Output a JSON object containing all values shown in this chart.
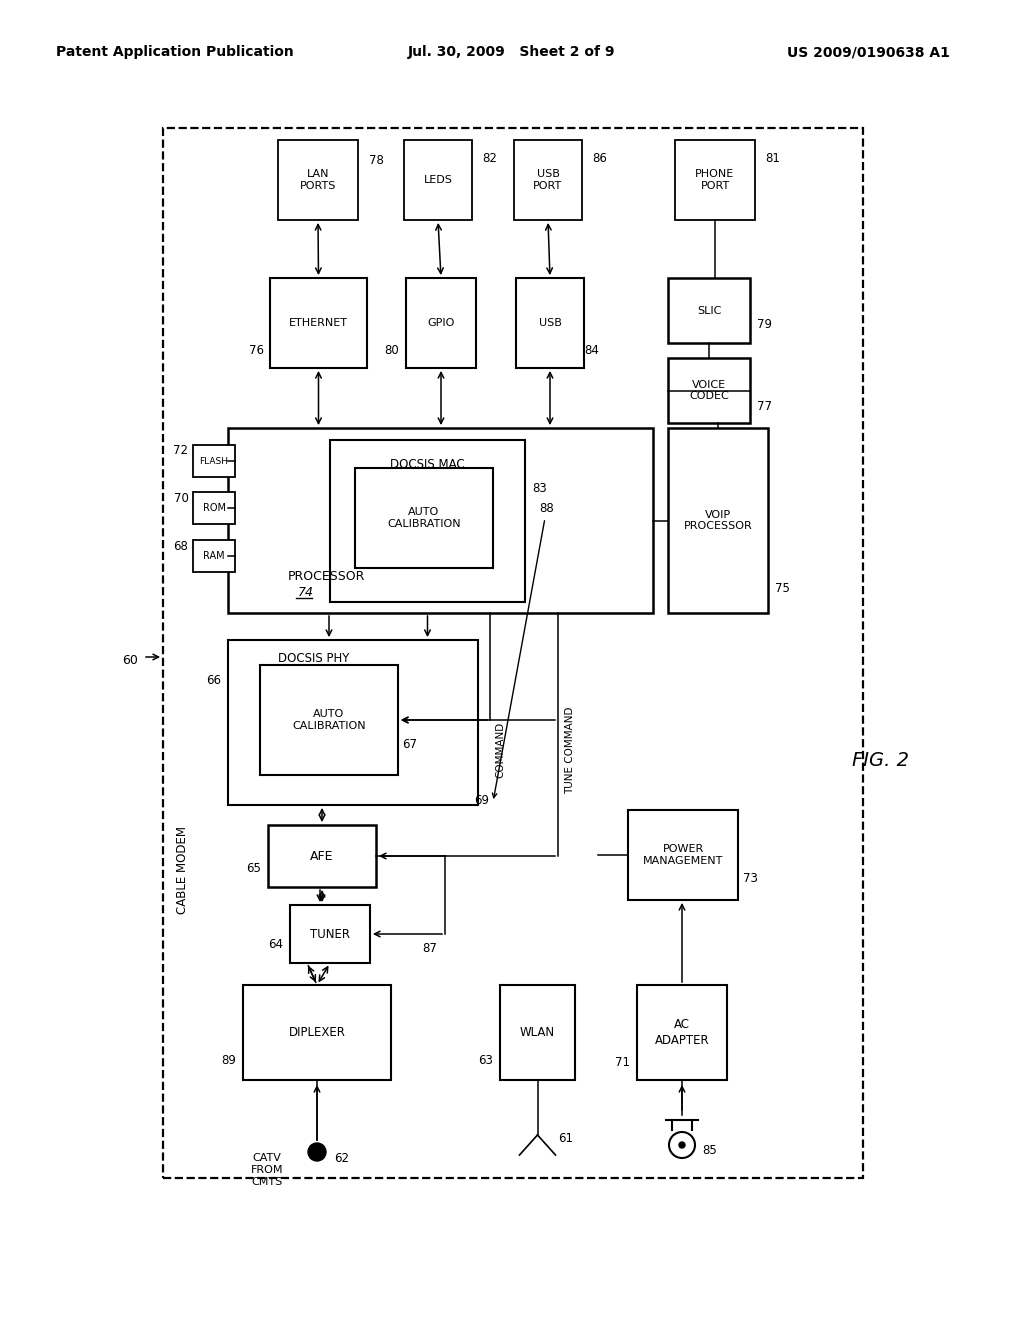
{
  "title_left": "Patent Application Publication",
  "title_mid": "Jul. 30, 2009   Sheet 2 of 9",
  "title_right": "US 2009/0190638 A1",
  "fig_label": "FIG. 2",
  "background": "#ffffff"
}
